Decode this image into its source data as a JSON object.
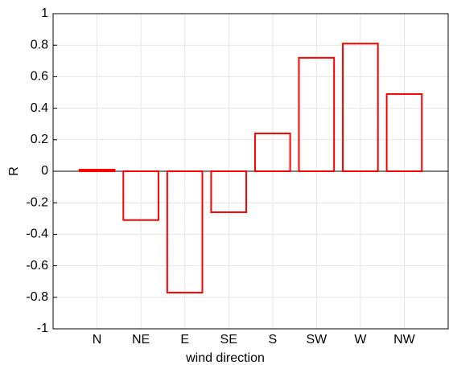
{
  "chart_data": {
    "type": "bar",
    "categories": [
      "N",
      "NE",
      "E",
      "SE",
      "S",
      "SW",
      "W",
      "NW"
    ],
    "values": [
      0.01,
      -0.31,
      -0.77,
      -0.26,
      0.24,
      0.72,
      0.81,
      0.49
    ],
    "color": "#ff0000",
    "x_label": "wind direction",
    "y_label": "R",
    "ylim": [
      -1,
      1
    ],
    "yticks": [
      -1,
      -0.8,
      -0.6,
      -0.4,
      -0.2,
      0,
      0.2,
      0.4,
      0.6,
      0.8,
      1
    ],
    "grid": true
  }
}
